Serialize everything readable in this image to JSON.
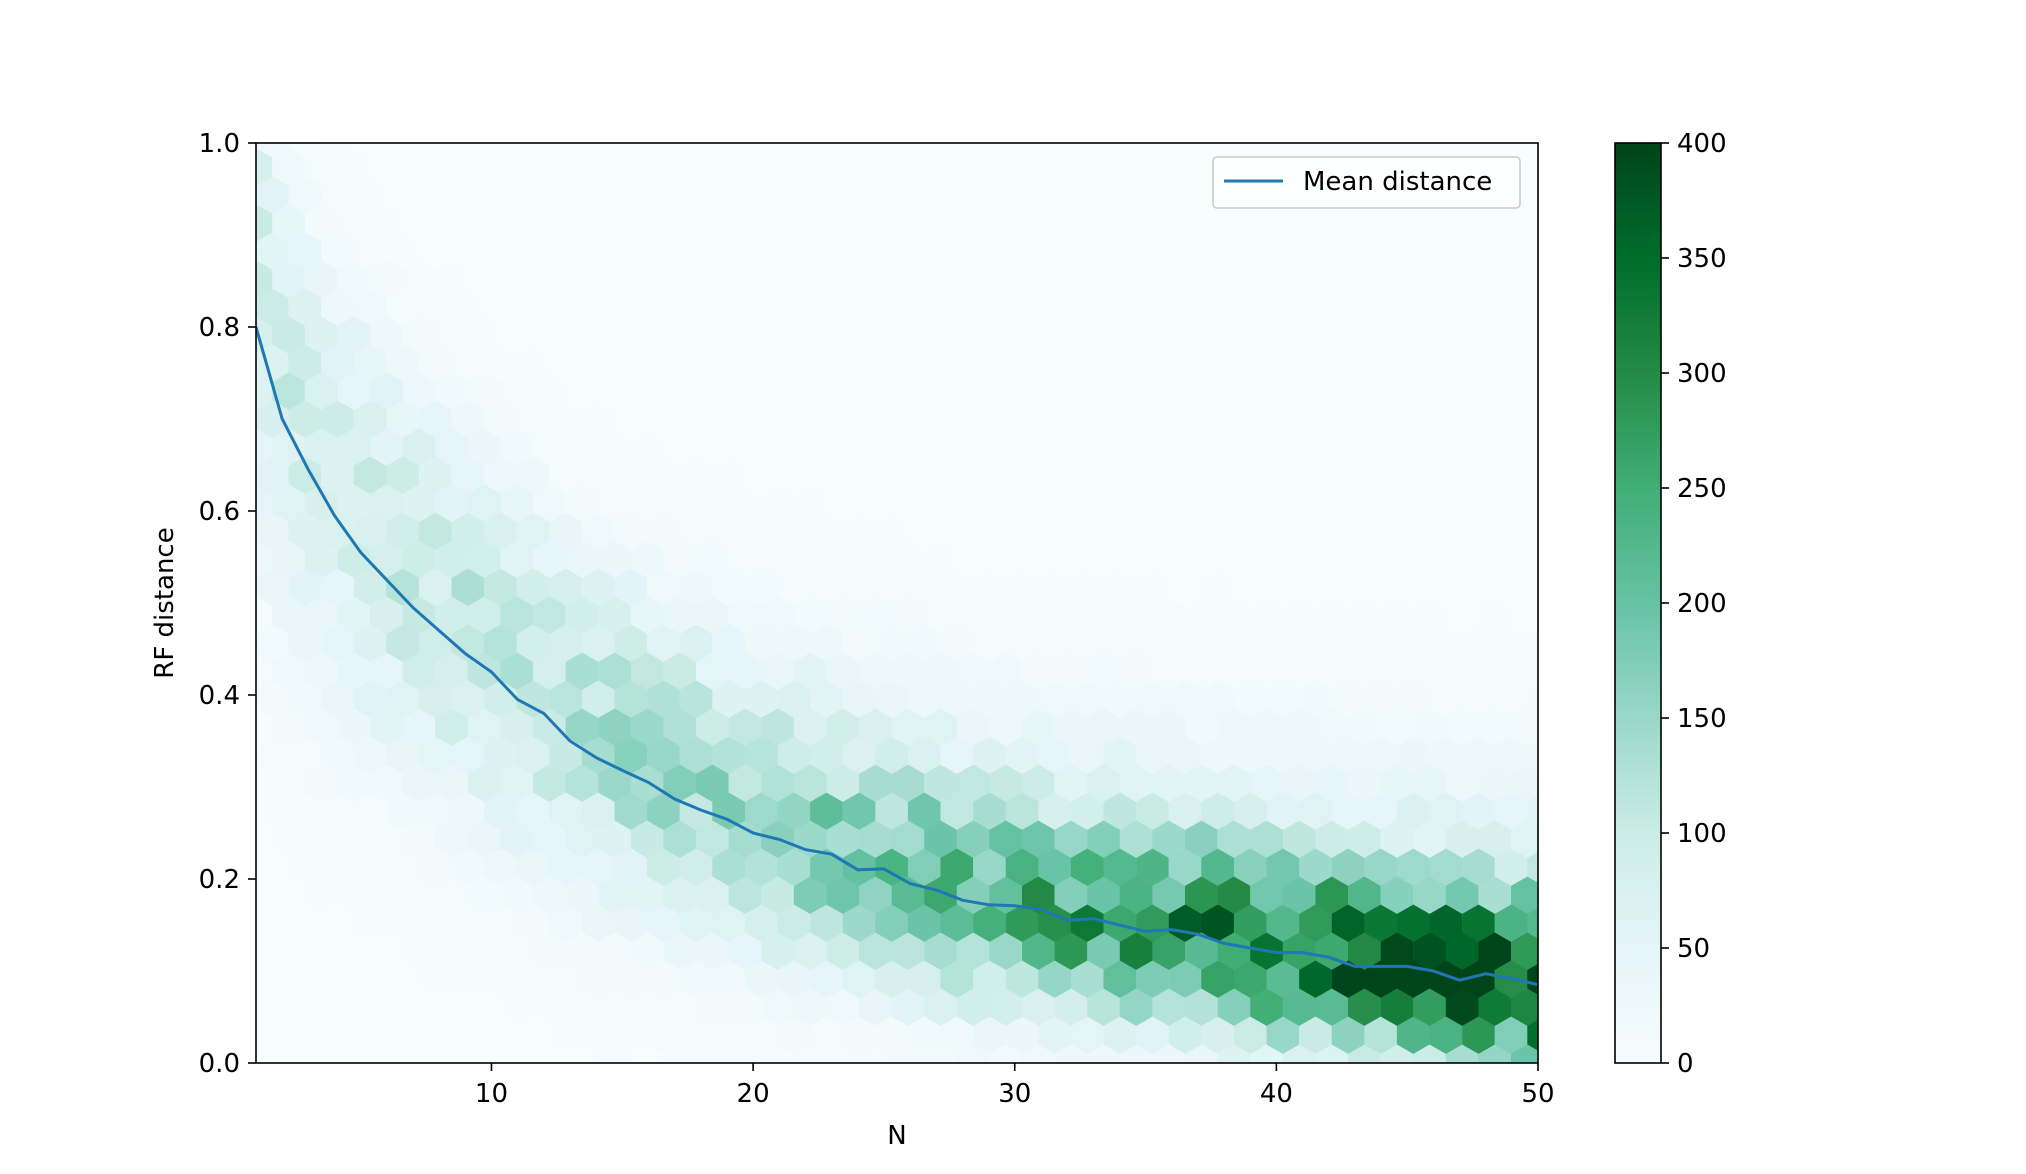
{
  "chart_data": {
    "type": "heatmap",
    "subtype": "hexbin",
    "title": "",
    "xlabel": "N",
    "ylabel": "RF distance",
    "xlim": [
      1,
      50
    ],
    "ylim": [
      0,
      1.0
    ],
    "x_ticks": [
      10,
      20,
      30,
      40,
      50
    ],
    "y_ticks": [
      "0.0",
      "0.2",
      "0.4",
      "0.6",
      "0.8",
      "1.0"
    ],
    "grid": false,
    "colormap": "BuGn",
    "colorbar": {
      "range": [
        0,
        400
      ],
      "ticks": [
        "0",
        "50",
        "100",
        "150",
        "200",
        "250",
        "300",
        "350",
        "400"
      ]
    },
    "legend": {
      "placement": "top-right",
      "entries": [
        "Mean distance"
      ]
    },
    "series": [
      {
        "name": "Mean distance",
        "type": "line",
        "color": "#1f77b4",
        "x": [
          1,
          2,
          3,
          4,
          5,
          6,
          7,
          8,
          9,
          10,
          11,
          12,
          13,
          14,
          15,
          16,
          17,
          18,
          19,
          20,
          21,
          22,
          23,
          24,
          25,
          26,
          27,
          28,
          29,
          30,
          31,
          32,
          33,
          34,
          35,
          36,
          37,
          38,
          39,
          40,
          41,
          42,
          43,
          44,
          45,
          46,
          47,
          48,
          49,
          50
        ],
        "y": [
          0.8,
          0.7,
          0.645,
          0.595,
          0.555,
          0.525,
          0.495,
          0.47,
          0.445,
          0.425,
          0.395,
          0.38,
          0.35,
          0.332,
          0.318,
          0.305,
          0.287,
          0.275,
          0.265,
          0.25,
          0.243,
          0.232,
          0.227,
          0.21,
          0.211,
          0.195,
          0.188,
          0.177,
          0.172,
          0.171,
          0.167,
          0.155,
          0.157,
          0.15,
          0.143,
          0.145,
          0.14,
          0.13,
          0.125,
          0.12,
          0.12,
          0.115,
          0.105,
          0.105,
          0.105,
          0.1,
          0.09,
          0.097,
          0.092,
          0.085
        ]
      }
    ]
  }
}
